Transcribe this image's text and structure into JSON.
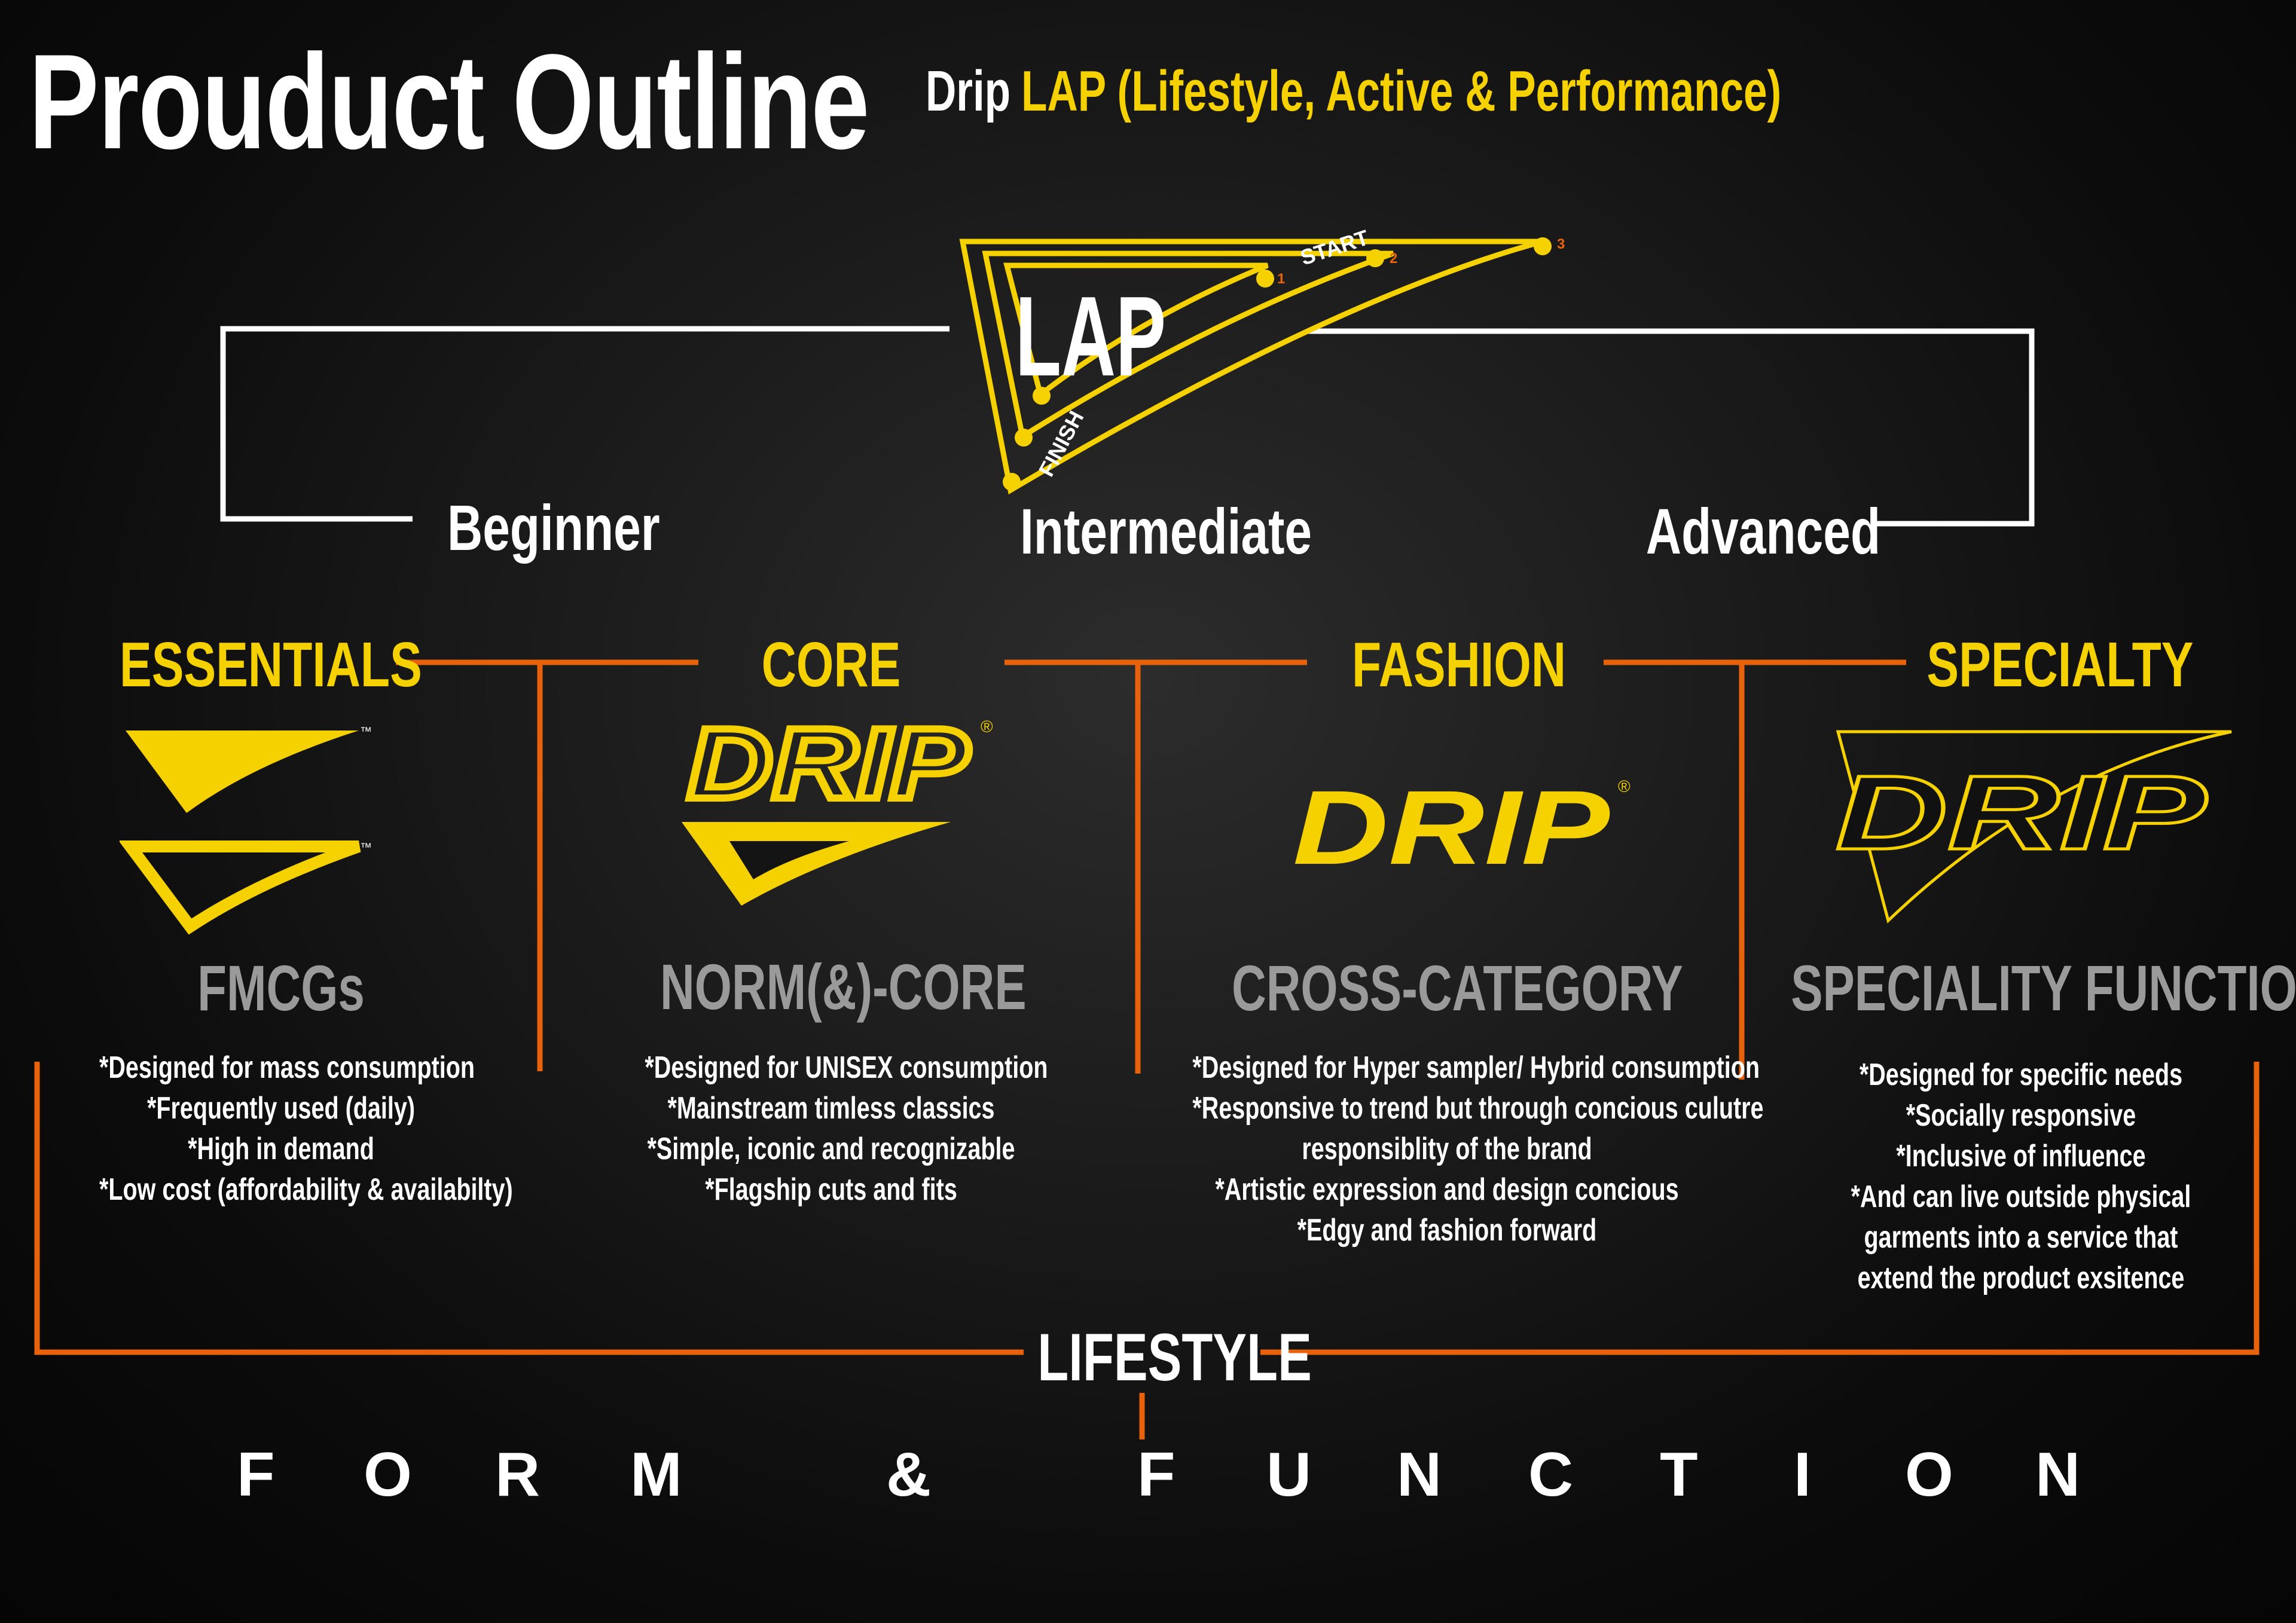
{
  "header": {
    "title": "Prouduct Outline",
    "subtitle_brand": "Drip",
    "subtitle_program": "LAP (Lifestyle, Active & Performance)"
  },
  "lap_logo": {
    "text": "LAP",
    "start_label": "START",
    "finish_label": "FINISH",
    "markers": [
      "1",
      "2",
      "3"
    ]
  },
  "levels": [
    "Beginner",
    "Intermediate",
    "Advanced"
  ],
  "categories": [
    {
      "name": "ESSENTIALS",
      "logo_icon": "essentials-chevron-marks",
      "trademark": "™",
      "type": "FMCGs",
      "bullets": [
        "*Designed for mass consumption",
        "*Frequently used (daily)",
        "*High in demand",
        "*Low cost (affordability & availabilty)"
      ]
    },
    {
      "name": "CORE",
      "logo_icon": "drip-chevron-logo",
      "logo_text": "DRIP",
      "registered": "®",
      "type": "NORM(&)-CORE",
      "bullets": [
        "*Designed for UNISEX consumption",
        "*Mainstream timless classics",
        "*Simple, iconic and recognizable",
        "*Flagship cuts and fits"
      ]
    },
    {
      "name": "FASHION",
      "logo_icon": "drip-wordmark-logo",
      "logo_text": "DRIP",
      "registered": "®",
      "type": "CROSS-CATEGORY",
      "bullets": [
        "*Designed for Hyper sampler/ Hybrid consumption",
        "*Responsive to trend but through concious culutre",
        "responsiblity of the brand",
        "*Artistic expression and design concious",
        "*Edgy and fashion forward"
      ]
    },
    {
      "name": "SPECIALTY",
      "logo_icon": "drip-outline-logo",
      "logo_text": "DRIP",
      "type": "SPECIALITY FUNCTION",
      "bullets": [
        "*Designed for specific needs",
        "*Socially responsive",
        "*Inclusive of influence",
        "*And can live outside physical",
        "garments into a service that",
        "extend the product exsitence"
      ]
    }
  ],
  "footer": {
    "lifestyle": "LIFESTYLE",
    "form_letters": [
      "F",
      "O",
      "R",
      "M"
    ],
    "ampersand": "&",
    "function_letters": [
      "F",
      "U",
      "N",
      "C",
      "T",
      "I",
      "O",
      "N"
    ]
  },
  "colors": {
    "background": "#0d0d0d",
    "accent_yellow": "#f5d100",
    "connector_orange": "#e8620c",
    "muted_gray": "#9a9a9a",
    "text_white": "#ffffff"
  }
}
